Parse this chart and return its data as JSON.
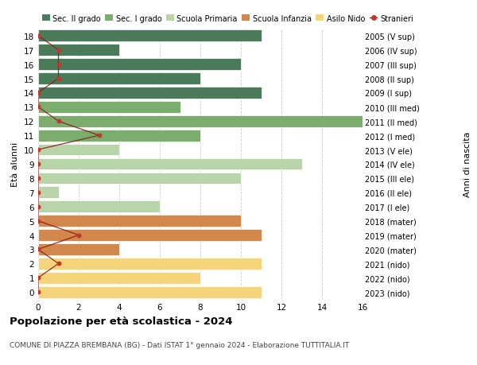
{
  "ages": [
    18,
    17,
    16,
    15,
    14,
    13,
    12,
    11,
    10,
    9,
    8,
    7,
    6,
    5,
    4,
    3,
    2,
    1,
    0
  ],
  "bar_values": [
    11,
    4,
    10,
    8,
    11,
    7,
    16,
    8,
    4,
    13,
    10,
    1,
    6,
    10,
    11,
    4,
    11,
    8,
    11
  ],
  "bar_colors": [
    "#4a7c59",
    "#4a7c59",
    "#4a7c59",
    "#4a7c59",
    "#4a7c59",
    "#7aad6e",
    "#7aad6e",
    "#7aad6e",
    "#b8d4a8",
    "#b8d4a8",
    "#b8d4a8",
    "#b8d4a8",
    "#b8d4a8",
    "#d4874a",
    "#d4874a",
    "#d4874a",
    "#f5d47a",
    "#f5d47a",
    "#f5d47a"
  ],
  "right_labels": [
    "2005 (V sup)",
    "2006 (IV sup)",
    "2007 (III sup)",
    "2008 (II sup)",
    "2009 (I sup)",
    "2010 (III med)",
    "2011 (II med)",
    "2012 (I med)",
    "2013 (V ele)",
    "2014 (IV ele)",
    "2015 (III ele)",
    "2016 (II ele)",
    "2017 (I ele)",
    "2018 (mater)",
    "2019 (mater)",
    "2020 (mater)",
    "2021 (nido)",
    "2022 (nido)",
    "2023 (nido)"
  ],
  "stranieri_values": [
    0,
    1,
    1,
    1,
    0,
    0,
    1,
    3,
    0,
    0,
    0,
    0,
    0,
    0,
    2,
    0,
    1,
    0,
    0
  ],
  "legend_labels": [
    "Sec. II grado",
    "Sec. I grado",
    "Scuola Primaria",
    "Scuola Infanzia",
    "Asilo Nido",
    "Stranieri"
  ],
  "legend_colors": [
    "#4a7c59",
    "#7aad6e",
    "#b8d4a8",
    "#d4874a",
    "#f5d47a",
    "#c0392b"
  ],
  "title": "Popolazione per età scolastica - 2024",
  "subtitle": "COMUNE DI PIAZZA BREMBANA (BG) - Dati ISTAT 1° gennaio 2024 - Elaborazione TUTTITALIA.IT",
  "ylabel_left": "Età alunni",
  "ylabel_right": "Anni di nascita",
  "xlim": [
    0,
    16
  ],
  "xticks": [
    0,
    2,
    4,
    6,
    8,
    10,
    12,
    14,
    16
  ],
  "bg_color": "#ffffff",
  "grid_color": "#cccccc",
  "bar_height": 0.82
}
